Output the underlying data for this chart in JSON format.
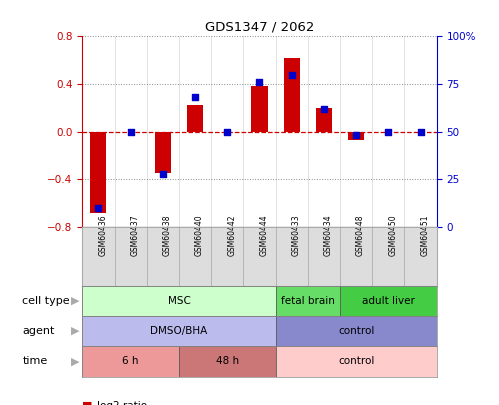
{
  "title": "GDS1347 / 2062",
  "samples": [
    "GSM60436",
    "GSM60437",
    "GSM60438",
    "GSM60440",
    "GSM60442",
    "GSM60444",
    "GSM60433",
    "GSM60434",
    "GSM60448",
    "GSM60450",
    "GSM60451"
  ],
  "log2_ratio": [
    -0.68,
    0.0,
    -0.35,
    0.22,
    0.0,
    0.38,
    0.62,
    0.2,
    -0.07,
    0.0,
    0.0
  ],
  "percentile": [
    10,
    50,
    28,
    68,
    50,
    76,
    80,
    62,
    48,
    50,
    50
  ],
  "ylim_left": [
    -0.8,
    0.8
  ],
  "ylim_right": [
    0,
    100
  ],
  "yticks_left": [
    -0.8,
    -0.4,
    0.0,
    0.4,
    0.8
  ],
  "yticks_right": [
    0,
    25,
    50,
    75,
    100
  ],
  "yticklabels_right": [
    "0",
    "25",
    "50",
    "75",
    "100%"
  ],
  "bar_color": "#cc0000",
  "dot_color": "#0000cc",
  "zero_line_color": "#cc0000",
  "cell_type_groups": [
    {
      "label": "MSC",
      "start": 0,
      "end": 6,
      "color": "#ccffcc"
    },
    {
      "label": "fetal brain",
      "start": 6,
      "end": 8,
      "color": "#66dd66"
    },
    {
      "label": "adult liver",
      "start": 8,
      "end": 11,
      "color": "#44cc44"
    }
  ],
  "agent_groups": [
    {
      "label": "DMSO/BHA",
      "start": 0,
      "end": 6,
      "color": "#bbbbee"
    },
    {
      "label": "control",
      "start": 6,
      "end": 11,
      "color": "#8888cc"
    }
  ],
  "time_groups": [
    {
      "label": "6 h",
      "start": 0,
      "end": 3,
      "color": "#ee9999"
    },
    {
      "label": "48 h",
      "start": 3,
      "end": 6,
      "color": "#cc7777"
    },
    {
      "label": "control",
      "start": 6,
      "end": 11,
      "color": "#ffcccc"
    }
  ],
  "row_labels": [
    "cell type",
    "agent",
    "time"
  ],
  "bar_color_red": "#cc0000",
  "dot_color_blue": "#0000cc",
  "axis_left_color": "#cc0000",
  "axis_right_color": "#0000cc",
  "tick_bg_color": "#dddddd",
  "grid_dotted_color": "#888888",
  "arrow_color": "#999999"
}
